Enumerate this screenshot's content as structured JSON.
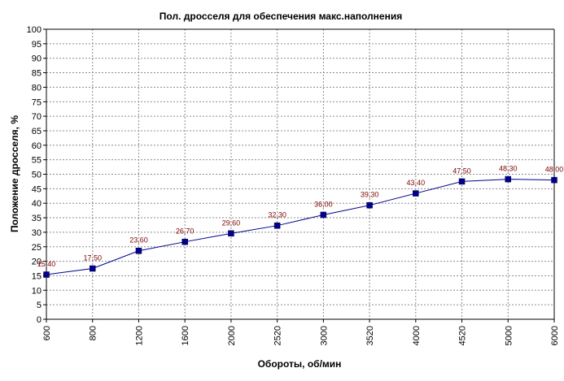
{
  "chart_data": {
    "type": "line",
    "title": "Пол. дросселя для обеспечения макс.наполнения",
    "xlabel": "Обороты, об/мин",
    "ylabel": "Положение дросселя, %",
    "categories": [
      "600",
      "800",
      "1200",
      "1600",
      "2000",
      "2520",
      "3000",
      "3520",
      "4000",
      "4520",
      "5000",
      "6000"
    ],
    "series": [
      {
        "values": [
          15.4,
          17.5,
          23.6,
          26.7,
          29.6,
          32.3,
          36.0,
          39.3,
          43.4,
          47.5,
          48.3,
          48.0
        ],
        "labels": [
          "15,40",
          "17,50",
          "23,60",
          "26,70",
          "29,60",
          "32,30",
          "36,00",
          "39,30",
          "43,40",
          "47,50",
          "48,30",
          "48,00"
        ],
        "color": "#00008b"
      }
    ],
    "ylim": [
      0,
      100
    ],
    "yticks": [
      "0",
      "5",
      "10",
      "15",
      "20",
      "25",
      "30",
      "35",
      "40",
      "45",
      "50",
      "55",
      "60",
      "65",
      "70",
      "75",
      "80",
      "85",
      "90",
      "95",
      "100"
    ],
    "grid": true,
    "legend": "none"
  }
}
